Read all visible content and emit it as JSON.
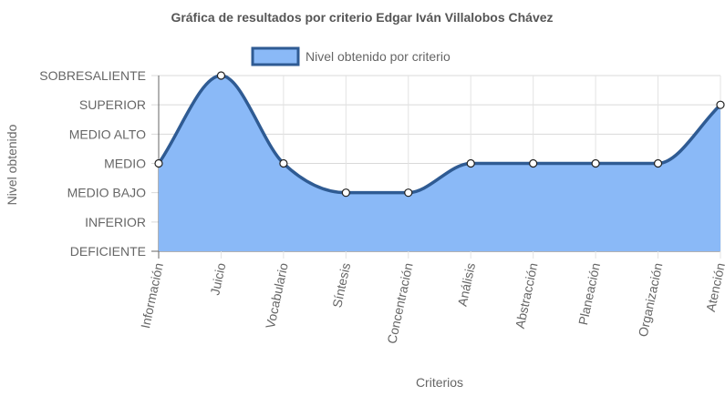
{
  "chart_data": {
    "type": "area",
    "title": "Gráfica de resultados por criterio Edgar Iván Villalobos Chávez",
    "xlabel": "Criterios",
    "ylabel": "Nivel obtenido",
    "y_levels": [
      "DEFICIENTE",
      "INFERIOR",
      "MEDIO BAJO",
      "MEDIO",
      "MEDIO ALTO",
      "SUPERIOR",
      "SOBRESALIENTE"
    ],
    "categories": [
      "Información",
      "Juicio",
      "Vocabulario",
      "Síntesis",
      "Concentración",
      "Análisis",
      "Abstracción",
      "Planeación",
      "Organización",
      "Atención"
    ],
    "series": [
      {
        "name": "Nivel obtenido por criterio",
        "values": [
          3,
          6,
          3,
          2,
          2,
          3,
          3,
          3,
          3,
          5
        ],
        "fill_color": "#8ab9f7",
        "line_color": "#2f5b93"
      }
    ],
    "ylim": [
      0,
      6
    ],
    "grid": true,
    "legend_position": "top"
  }
}
